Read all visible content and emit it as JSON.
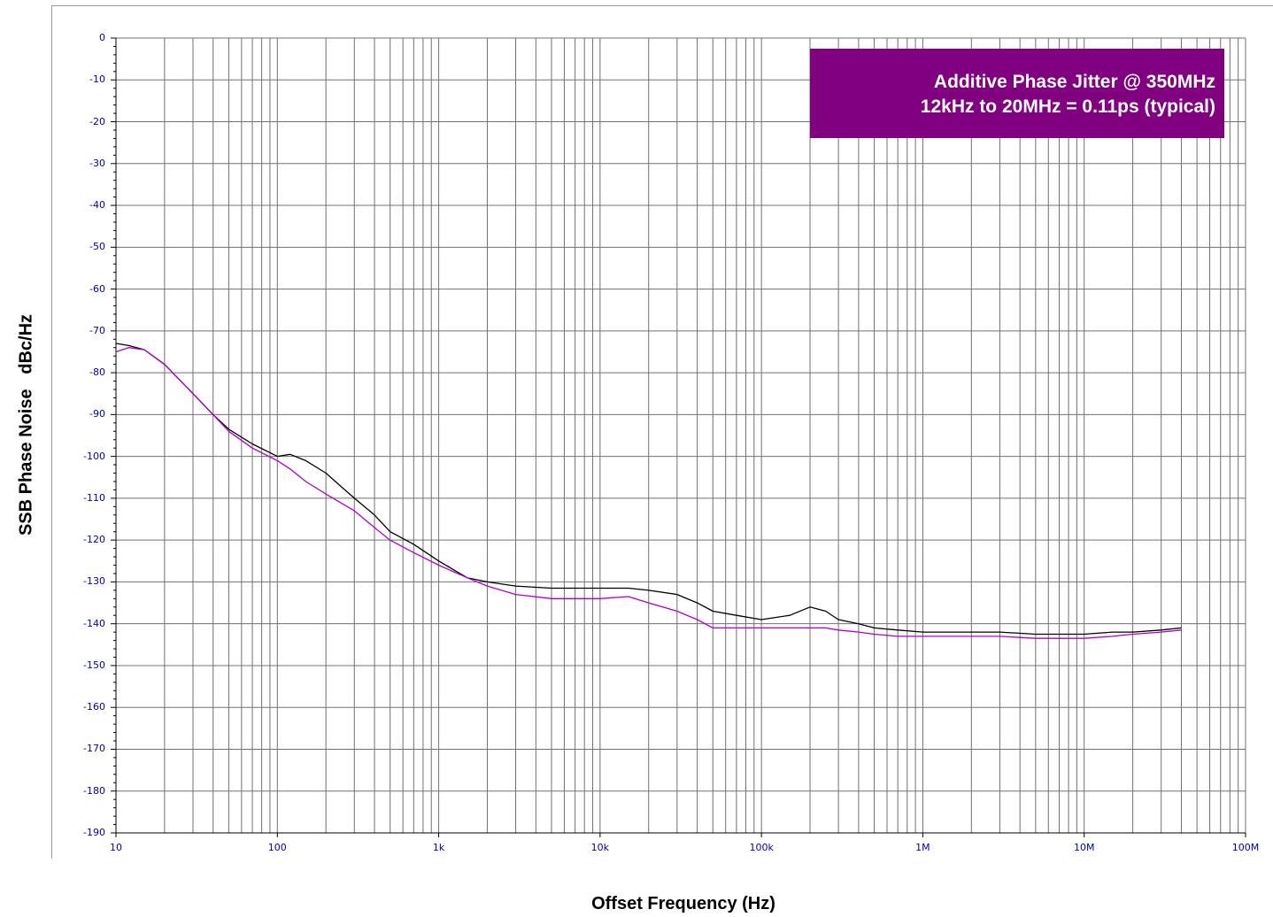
{
  "chart_data": {
    "type": "line",
    "title": "",
    "xlabel": "Offset Frequency (Hz)",
    "ylabel": "SSB Phase Noise   dBc/Hz",
    "x_scale": "log",
    "xlim": [
      10,
      100000000
    ],
    "ylim": [
      -190,
      0
    ],
    "grid": true,
    "x_tick_labels": [
      "10",
      "100",
      "1k",
      "10k",
      "100k",
      "1M",
      "10M",
      "100M"
    ],
    "y_tick_labels": [
      "0",
      "-10",
      "-20",
      "-30",
      "-40",
      "-50",
      "-60",
      "-70",
      "-80",
      "-90",
      "-100",
      "-110",
      "-120",
      "-130",
      "-140",
      "-150",
      "-160",
      "-170",
      "-180",
      "-190"
    ],
    "annotation": {
      "lines": [
        "Additive Phase Jitter @ 350MHz",
        "12kHz to 20MHz = 0.11ps (typical)"
      ],
      "color": "#800080"
    },
    "series": [
      {
        "color": "#000000",
        "x": [
          10,
          12,
          15,
          20,
          30,
          40,
          50,
          70,
          100,
          120,
          150,
          200,
          300,
          400,
          500,
          700,
          1000,
          1500,
          2000,
          3000,
          5000,
          7000,
          10000,
          15000,
          20000,
          30000,
          40000,
          50000,
          70000,
          100000,
          150000,
          200000,
          250000,
          300000,
          400000,
          500000,
          700000,
          1000000,
          1500000,
          2000000,
          3000000,
          5000000,
          7000000,
          10000000,
          15000000,
          20000000,
          30000000,
          40000000
        ],
        "y": [
          -73,
          -73.5,
          -74.5,
          -78,
          -85,
          -90,
          -93.5,
          -97,
          -100,
          -99.5,
          -101,
          -104,
          -110,
          -114,
          -118,
          -121,
          -125,
          -129,
          -130,
          -131,
          -131.5,
          -131.5,
          -131.5,
          -131.5,
          -132,
          -133,
          -135,
          -137,
          -138,
          -139,
          -138,
          -136,
          -137,
          -139,
          -140,
          -141,
          -141.5,
          -142,
          -142,
          -142,
          -142,
          -142.5,
          -142.5,
          -142.5,
          -142,
          -142,
          -141.5,
          -141
        ]
      },
      {
        "color": "#b000c8",
        "x": [
          10,
          12,
          15,
          20,
          30,
          40,
          50,
          70,
          100,
          120,
          150,
          200,
          300,
          400,
          500,
          700,
          1000,
          1500,
          2000,
          3000,
          5000,
          7000,
          10000,
          15000,
          20000,
          30000,
          40000,
          50000,
          70000,
          100000,
          150000,
          200000,
          250000,
          300000,
          400000,
          500000,
          700000,
          1000000,
          1500000,
          2000000,
          3000000,
          5000000,
          7000000,
          10000000,
          15000000,
          20000000,
          30000000,
          40000000
        ],
        "y": [
          -75,
          -74,
          -74.5,
          -78,
          -85,
          -90,
          -94,
          -98,
          -101,
          -103,
          -106,
          -109,
          -113,
          -117,
          -120,
          -123,
          -126,
          -129,
          -131,
          -133,
          -134,
          -134,
          -134,
          -133.5,
          -135,
          -137,
          -139,
          -141,
          -141,
          -141,
          -141,
          -141,
          -141,
          -141.5,
          -142,
          -142.5,
          -143,
          -143,
          -143,
          -143,
          -143,
          -143.5,
          -143.5,
          -143.5,
          -143,
          -142.5,
          -142,
          -141.5
        ]
      }
    ]
  }
}
